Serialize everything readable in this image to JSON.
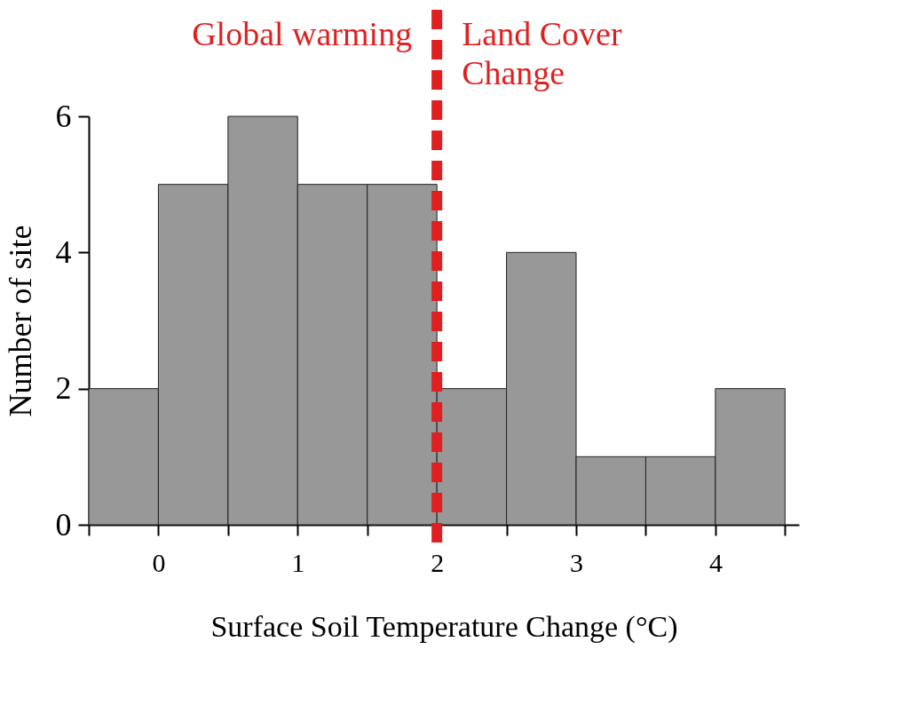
{
  "chart_data": {
    "type": "histogram",
    "xlabel": "Surface Soil Temperature Change (°C)",
    "ylabel": "Number of site",
    "bins": [
      -0.5,
      0,
      0.5,
      1,
      1.5,
      2,
      2.5,
      3,
      3.5,
      4,
      4.5
    ],
    "values": [
      2,
      5,
      6,
      5,
      5,
      2,
      4,
      1,
      1,
      2
    ],
    "color": "#999898",
    "xlim": [
      -0.5,
      4.6
    ],
    "xticks": [
      {
        "value": -0.5,
        "label": null
      },
      0,
      {
        "value": 0.5,
        "label": null
      },
      1,
      {
        "value": 1.5,
        "label": null
      },
      2,
      {
        "value": 2.5,
        "label": null
      },
      3,
      {
        "value": 3.5,
        "label": null
      },
      4,
      {
        "value": 4.5,
        "label": null
      }
    ],
    "ylim": [
      0,
      6
    ],
    "yticks": [
      0,
      2,
      4,
      6
    ],
    "ref_lines": [
      {
        "axis": "x",
        "value": 2,
        "color": "#e02020",
        "line_style": "dashed"
      }
    ],
    "annotations": [
      "Global warming",
      "Land Cover Change"
    ],
    "grid": false
  }
}
